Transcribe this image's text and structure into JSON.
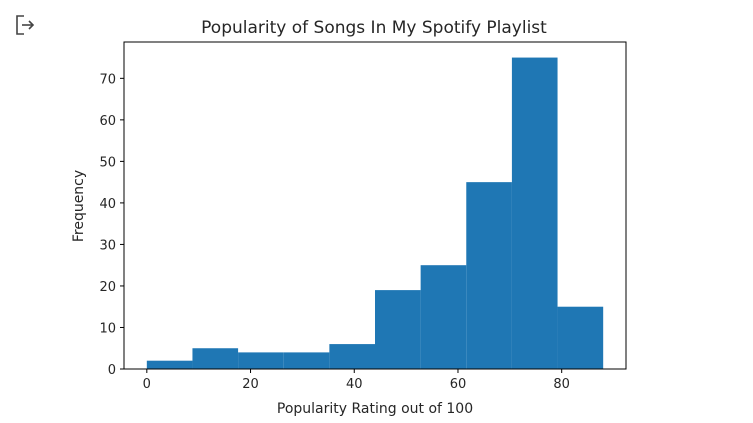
{
  "output_icon": "output-redirect-icon",
  "chart_data": {
    "type": "bar",
    "subtype": "histogram",
    "title": "Popularity of Songs In My Spotify Playlist",
    "xlabel": "Popularity Rating out of 100",
    "ylabel": "Frequency",
    "bin_edges": [
      0,
      8.8,
      17.6,
      26.4,
      35.2,
      44,
      52.8,
      61.6,
      70.4,
      79.2,
      88
    ],
    "values": [
      2,
      5,
      4,
      4,
      6,
      19,
      25,
      45,
      75,
      15
    ],
    "xlim": [
      -4.4,
      92.4
    ],
    "ylim": [
      0,
      78.75
    ],
    "xticks": [
      0,
      20,
      40,
      60,
      80
    ],
    "xtick_labels": [
      "0",
      "20",
      "40",
      "60",
      "80"
    ],
    "yticks": [
      0,
      10,
      20,
      30,
      40,
      50,
      60,
      70
    ],
    "ytick_labels": [
      "0",
      "10",
      "20",
      "30",
      "40",
      "50",
      "60",
      "70"
    ],
    "bar_color": "#1f77b4",
    "grid": false
  }
}
